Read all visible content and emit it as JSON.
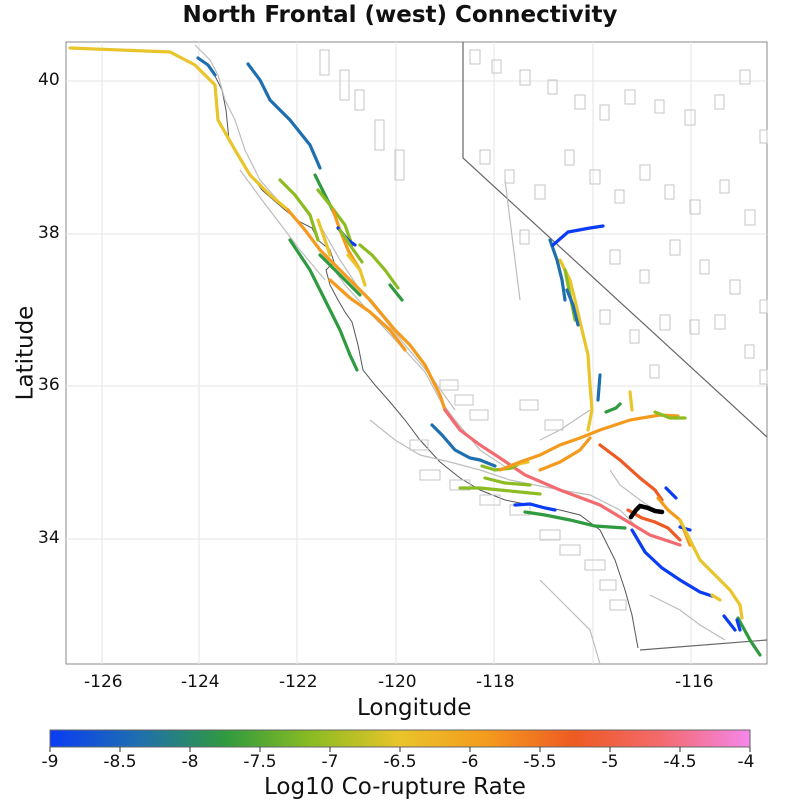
{
  "title": "North Frontal (west) Connectivity",
  "xlabel": "Longitude",
  "ylabel": "Latitude",
  "colorbar_label": "Log10 Co-rupture Rate",
  "x_ticks": [
    "-126",
    "-124",
    "-122",
    "-120",
    "-118",
    "-116"
  ],
  "y_ticks": [
    "40",
    "38",
    "36",
    "34"
  ],
  "colorbar_ticks": [
    "-9",
    "-8.5",
    "-8",
    "-7.5",
    "-7",
    "-6.5",
    "-6",
    "-5.5",
    "-5",
    "-4.5",
    "-4"
  ],
  "colors": {
    "cbar_stops": [
      "#0a3cf5",
      "#1e6fb0",
      "#2f9a3f",
      "#8cbc22",
      "#e9c42a",
      "#f49a1d",
      "#ee5a23",
      "#f36a6f",
      "#f487ea"
    ],
    "source_fault": "#000000"
  },
  "map": {
    "lon_range": [
      -126.8,
      -115.1
    ],
    "lat_range": [
      32.4,
      40.5
    ]
  }
}
